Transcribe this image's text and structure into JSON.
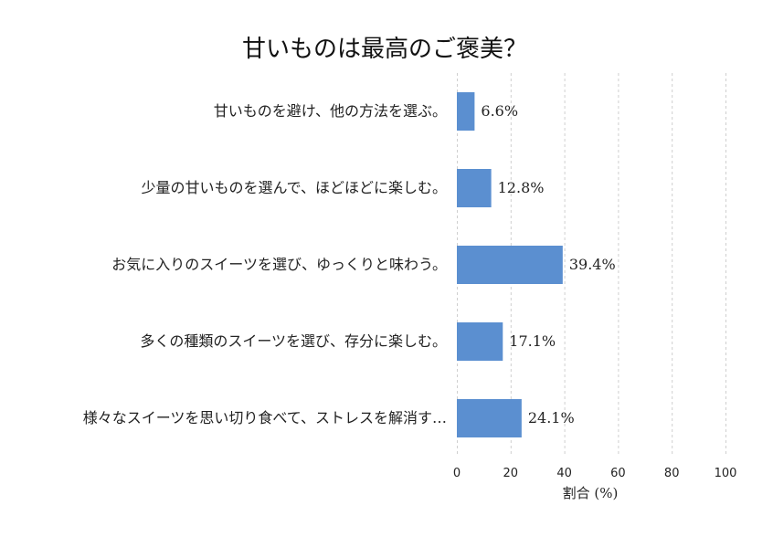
{
  "chart_data": {
    "type": "bar",
    "orientation": "horizontal",
    "title": "甘いものは最高のご褒美？",
    "xlabel": "割合 (%)",
    "ylabel": "",
    "xlim": [
      0,
      100
    ],
    "x_ticks": [
      0,
      20,
      40,
      60,
      80,
      100
    ],
    "grid": "vertical dashed",
    "categories": [
      "甘いものを避け、他の方法を選ぶ。",
      "少量の甘いものを選んで、ほどほどに楽しむ。",
      "お気に入りのスイーツを選び、ゆっくりと味わう。",
      "多くの種類のスイーツを選び、存分に楽しむ。",
      "様々なスイーツを思い切り食べて、ストレスを解消す…"
    ],
    "values": [
      6.6,
      12.8,
      39.4,
      17.1,
      24.1
    ],
    "value_labels": [
      "6.6%",
      "12.8%",
      "39.4%",
      "17.1%",
      "24.1%"
    ],
    "bar_color": "#5b8fd0"
  }
}
